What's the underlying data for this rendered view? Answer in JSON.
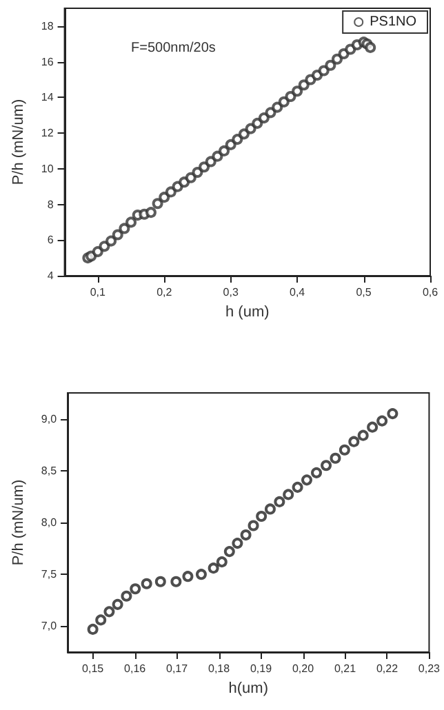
{
  "chart_data": [
    {
      "type": "scatter",
      "xlabel": "h (um)",
      "ylabel": "P/h (mN/um)",
      "annotations": [
        "F=500nm/20s"
      ],
      "marker": "circle",
      "legend": "top right",
      "grid": false,
      "xlim": [
        0.05,
        0.6
      ],
      "xticks": [
        {
          "value": 0.1,
          "label": "0,1"
        },
        {
          "value": 0.2,
          "label": "0,2"
        },
        {
          "value": 0.3,
          "label": "0,3"
        },
        {
          "value": 0.4,
          "label": "0,4"
        },
        {
          "value": 0.5,
          "label": "0,5"
        },
        {
          "value": 0.6,
          "label": "0,6"
        }
      ],
      "ylim": [
        4,
        19
      ],
      "yticks": [
        4,
        6,
        8,
        10,
        12,
        14,
        16,
        18
      ],
      "series": [
        {
          "name": "PS1NO",
          "color": "#333333",
          "x": [
            0.085,
            0.09,
            0.1,
            0.11,
            0.12,
            0.13,
            0.14,
            0.15,
            0.16,
            0.17,
            0.18,
            0.19,
            0.2,
            0.21,
            0.22,
            0.23,
            0.24,
            0.25,
            0.26,
            0.27,
            0.28,
            0.29,
            0.3,
            0.31,
            0.32,
            0.33,
            0.34,
            0.35,
            0.36,
            0.37,
            0.38,
            0.39,
            0.4,
            0.41,
            0.42,
            0.43,
            0.44,
            0.45,
            0.46,
            0.47,
            0.48,
            0.49,
            0.5,
            0.505,
            0.51
          ],
          "values": [
            5.0,
            5.1,
            5.35,
            5.65,
            5.95,
            6.3,
            6.65,
            7.0,
            7.4,
            7.45,
            7.55,
            8.05,
            8.4,
            8.7,
            9.0,
            9.25,
            9.5,
            9.8,
            10.1,
            10.4,
            10.7,
            11.0,
            11.35,
            11.65,
            11.95,
            12.25,
            12.55,
            12.85,
            13.15,
            13.45,
            13.75,
            14.05,
            14.35,
            14.7,
            15.0,
            15.25,
            15.5,
            15.8,
            16.15,
            16.45,
            16.7,
            16.95,
            17.1,
            17.0,
            16.8
          ]
        }
      ]
    },
    {
      "type": "scatter",
      "xlabel": "h(um)",
      "ylabel": "P/h (mN/um)",
      "marker": "circle",
      "grid": false,
      "xlim": [
        0.144,
        0.23
      ],
      "xticks": [
        {
          "value": 0.15,
          "label": "0,15"
        },
        {
          "value": 0.16,
          "label": "0,16"
        },
        {
          "value": 0.17,
          "label": "0,17"
        },
        {
          "value": 0.18,
          "label": "0,18"
        },
        {
          "value": 0.19,
          "label": "0,19"
        },
        {
          "value": 0.2,
          "label": "0,20"
        },
        {
          "value": 0.21,
          "label": "0,21"
        },
        {
          "value": 0.22,
          "label": "0,22"
        },
        {
          "value": 0.23,
          "label": "0,23"
        }
      ],
      "ylim": [
        6.75,
        9.25
      ],
      "yticks": [
        {
          "value": 7,
          "label": "7,0"
        },
        {
          "value": 7.5,
          "label": "7,5"
        },
        {
          "value": 8,
          "label": "8,0"
        },
        {
          "value": 8.5,
          "label": "8,5"
        },
        {
          "value": 9,
          "label": "9,0"
        }
      ],
      "series": [
        {
          "color": "#222222",
          "x": [
            0.15,
            0.1519,
            0.1539,
            0.1559,
            0.158,
            0.1601,
            0.1628,
            0.1661,
            0.1698,
            0.1726,
            0.1758,
            0.1787,
            0.1807,
            0.1825,
            0.1844,
            0.1864,
            0.1882,
            0.1901,
            0.1922,
            0.1944,
            0.1965,
            0.1987,
            0.2009,
            0.2032,
            0.2055,
            0.2077,
            0.2099,
            0.2121,
            0.2143,
            0.2165,
            0.2188,
            0.2213
          ],
          "values": [
            6.97,
            7.06,
            7.14,
            7.21,
            7.29,
            7.36,
            7.41,
            7.43,
            7.43,
            7.48,
            7.5,
            7.56,
            7.62,
            7.72,
            7.8,
            7.88,
            7.97,
            8.06,
            8.13,
            8.2,
            8.27,
            8.34,
            8.41,
            8.48,
            8.55,
            8.62,
            8.7,
            8.78,
            8.84,
            8.92,
            8.98,
            9.05
          ]
        }
      ]
    }
  ]
}
